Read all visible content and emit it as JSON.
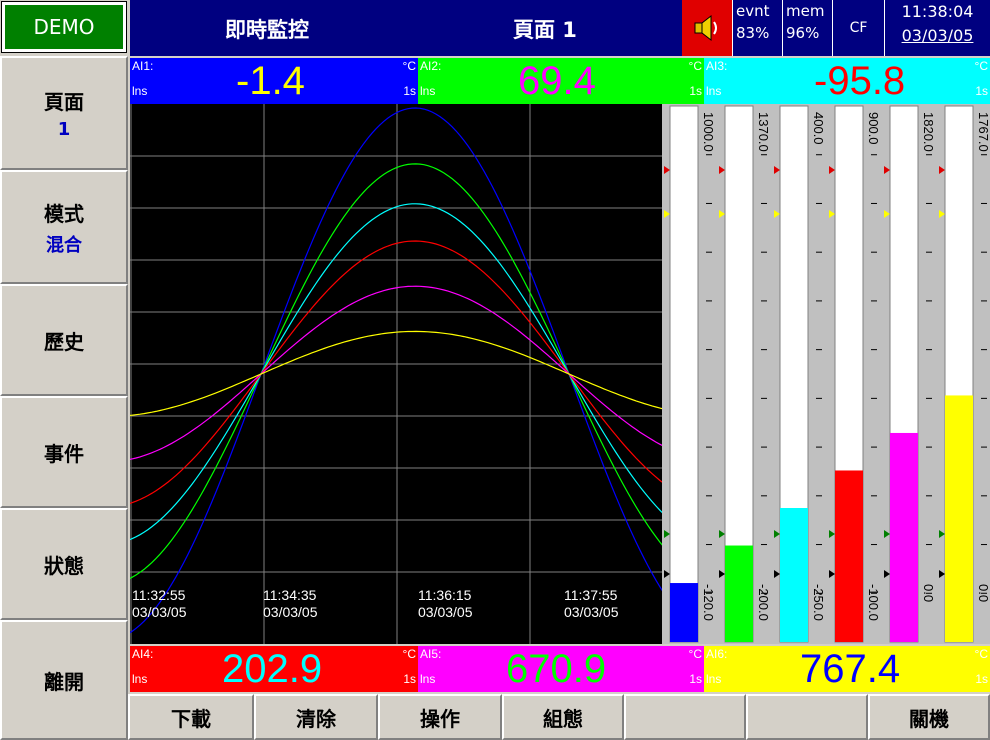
{
  "demo_label": "DEMO",
  "header": {
    "title": "即時監控",
    "page": "頁面 1",
    "evnt_label": "evnt",
    "evnt_value": "83%",
    "mem_label": "mem",
    "mem_value": "96%",
    "cf_label": "CF",
    "time": "11:38:04",
    "date": "03/03/05"
  },
  "sidebar": {
    "items": [
      {
        "label": "頁面",
        "sub": "1"
      },
      {
        "label": "模式",
        "sub": "混合"
      },
      {
        "label": "歷史",
        "sub": ""
      },
      {
        "label": "事件",
        "sub": ""
      },
      {
        "label": "狀態",
        "sub": ""
      },
      {
        "label": "離開",
        "sub": ""
      }
    ]
  },
  "channels": {
    "ai1": {
      "name": "AI1:",
      "tag": "lns",
      "value": "-1.4",
      "unit": "°C",
      "rate": "1s",
      "bg": "#0000ff",
      "fg": "#ffff00"
    },
    "ai2": {
      "name": "AI2:",
      "tag": "lns",
      "value": "69.4",
      "unit": "°C",
      "rate": "1s",
      "bg": "#00ff00",
      "fg": "#ff00ff"
    },
    "ai3": {
      "name": "AI3:",
      "tag": "lns",
      "value": "-95.8",
      "unit": "°C",
      "rate": "1s",
      "bg": "#00ffff",
      "fg": "#ff0000"
    },
    "ai4": {
      "name": "AI4:",
      "tag": "lns",
      "value": "202.9",
      "unit": "°C",
      "rate": "1s",
      "bg": "#ff0000",
      "fg": "#00ffff"
    },
    "ai5": {
      "name": "AI5:",
      "tag": "lns",
      "value": "670.9",
      "unit": "°C",
      "rate": "1s",
      "bg": "#ff00ff",
      "fg": "#00ff00"
    },
    "ai6": {
      "name": "AI6:",
      "tag": "lns",
      "value": "767.4",
      "unit": "°C",
      "rate": "1s",
      "bg": "#ffff00",
      "fg": "#0000ff"
    }
  },
  "chart_data": {
    "type": "line",
    "x_labels": [
      {
        "time": "11:32:55",
        "date": "03/03/05"
      },
      {
        "time": "11:34:35",
        "date": "03/03/05"
      },
      {
        "time": "11:36:15",
        "date": "03/03/05"
      },
      {
        "time": "11:37:55",
        "date": "03/03/05"
      }
    ],
    "series": [
      {
        "color": "#0000ff",
        "amplitude": 1.0
      },
      {
        "color": "#00ff00",
        "amplitude": 0.79
      },
      {
        "color": "#00ffff",
        "amplitude": 0.64
      },
      {
        "color": "#ff0000",
        "amplitude": 0.5
      },
      {
        "color": "#ff00ff",
        "amplitude": 0.33
      },
      {
        "color": "#ffff00",
        "amplitude": 0.16
      }
    ],
    "grid": true
  },
  "bargraphs": [
    {
      "color": "#0000ff",
      "max": "1000.0",
      "min": "-120.0",
      "level": 0.11
    },
    {
      "color": "#00ff00",
      "max": "1370.0",
      "min": "-200.0",
      "level": 0.18
    },
    {
      "color": "#00ffff",
      "max": "400.0",
      "min": "-250.0",
      "level": 0.25
    },
    {
      "color": "#ff0000",
      "max": "900.0",
      "min": "-100.0",
      "level": 0.32
    },
    {
      "color": "#ff00ff",
      "max": "1820.0",
      "min": "0.0",
      "level": 0.39
    },
    {
      "color": "#ffff00",
      "max": "1767.0",
      "min": "0.0",
      "level": 0.46
    }
  ],
  "bottom_buttons": [
    "下載",
    "清除",
    "操作",
    "組態",
    "",
    "",
    "關機"
  ]
}
